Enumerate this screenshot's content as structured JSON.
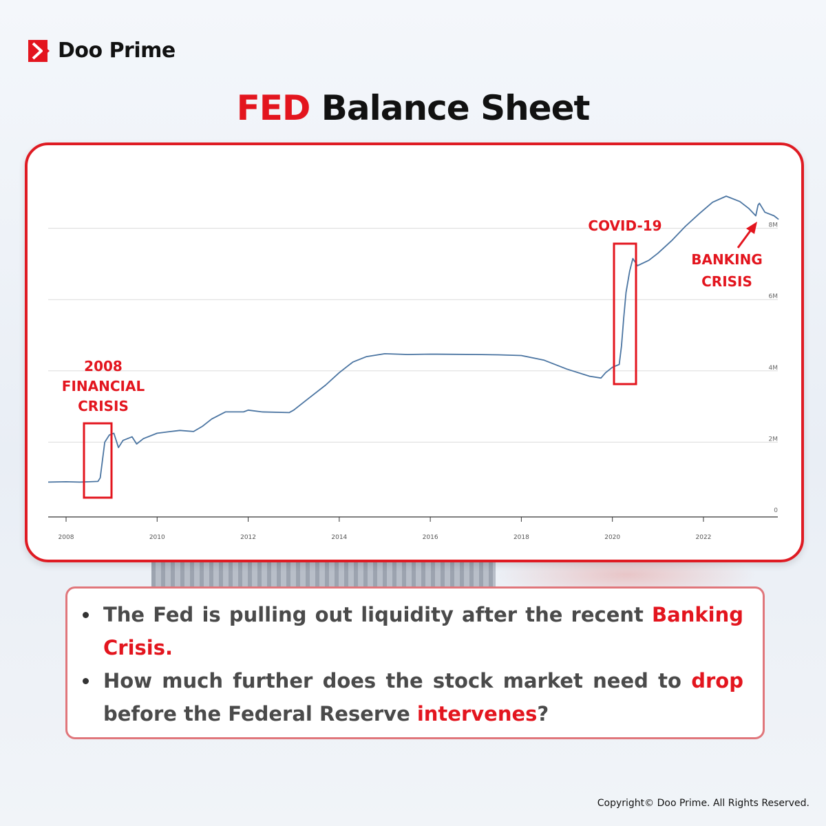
{
  "brand": {
    "name": "Doo Prime",
    "color": "#e3151e"
  },
  "title": {
    "accent": "FED",
    "rest": " Balance Sheet"
  },
  "chart_data": {
    "type": "line",
    "title": "",
    "xlabel": "",
    "ylabel": "",
    "xlim": [
      2007.6,
      2023.7
    ],
    "ylim": [
      0,
      9.5
    ],
    "x_ticks": [
      "2008",
      "2010",
      "2012",
      "2014",
      "2016",
      "2018",
      "2020",
      "2022"
    ],
    "y_ticks": [
      "0",
      "2M",
      "4M",
      "6M",
      "8M"
    ],
    "grid": true,
    "line_color": "#4a74a1",
    "series": [
      {
        "points": [
          [
            2007.6,
            0.88
          ],
          [
            2008.0,
            0.89
          ],
          [
            2008.3,
            0.88
          ],
          [
            2008.7,
            0.9
          ],
          [
            2008.75,
            1.0
          ],
          [
            2008.8,
            1.5
          ],
          [
            2008.85,
            2.0
          ],
          [
            2008.95,
            2.2
          ],
          [
            2009.05,
            2.25
          ],
          [
            2009.15,
            1.85
          ],
          [
            2009.25,
            2.05
          ],
          [
            2009.35,
            2.1
          ],
          [
            2009.45,
            2.15
          ],
          [
            2009.55,
            1.95
          ],
          [
            2009.7,
            2.1
          ],
          [
            2010.0,
            2.25
          ],
          [
            2010.3,
            2.3
          ],
          [
            2010.5,
            2.33
          ],
          [
            2010.8,
            2.3
          ],
          [
            2011.0,
            2.45
          ],
          [
            2011.2,
            2.65
          ],
          [
            2011.5,
            2.85
          ],
          [
            2011.9,
            2.85
          ],
          [
            2012.0,
            2.9
          ],
          [
            2012.3,
            2.85
          ],
          [
            2012.9,
            2.83
          ],
          [
            2013.0,
            2.9
          ],
          [
            2013.3,
            3.2
          ],
          [
            2013.7,
            3.6
          ],
          [
            2014.0,
            3.95
          ],
          [
            2014.3,
            4.25
          ],
          [
            2014.6,
            4.4
          ],
          [
            2015.0,
            4.48
          ],
          [
            2015.5,
            4.46
          ],
          [
            2016.0,
            4.47
          ],
          [
            2017.0,
            4.46
          ],
          [
            2017.5,
            4.45
          ],
          [
            2018.0,
            4.43
          ],
          [
            2018.5,
            4.3
          ],
          [
            2019.0,
            4.05
          ],
          [
            2019.5,
            3.85
          ],
          [
            2019.75,
            3.8
          ],
          [
            2019.85,
            3.95
          ],
          [
            2020.0,
            4.1
          ],
          [
            2020.15,
            4.18
          ],
          [
            2020.2,
            4.7
          ],
          [
            2020.25,
            5.5
          ],
          [
            2020.3,
            6.2
          ],
          [
            2020.38,
            6.8
          ],
          [
            2020.45,
            7.15
          ],
          [
            2020.55,
            6.95
          ],
          [
            2020.8,
            7.1
          ],
          [
            2021.0,
            7.3
          ],
          [
            2021.3,
            7.65
          ],
          [
            2021.6,
            8.05
          ],
          [
            2021.9,
            8.4
          ],
          [
            2022.2,
            8.73
          ],
          [
            2022.5,
            8.9
          ],
          [
            2022.8,
            8.75
          ],
          [
            2023.0,
            8.55
          ],
          [
            2023.15,
            8.35
          ],
          [
            2023.2,
            8.65
          ],
          [
            2023.23,
            8.7
          ],
          [
            2023.35,
            8.45
          ],
          [
            2023.55,
            8.35
          ],
          [
            2023.65,
            8.25
          ]
        ]
      }
    ],
    "annotations": [
      {
        "text": [
          "2008",
          "FINANCIAL",
          "CRISIS"
        ]
      },
      {
        "text": [
          "COVID-19"
        ]
      },
      {
        "text": [
          "BANKING",
          "CRISIS"
        ]
      }
    ],
    "annotation_color": "#e3151e"
  },
  "info": {
    "bullet1": {
      "text": "The Fed is pulling out liquidity after the recent ",
      "highlight": "Banking Crisis."
    },
    "bullet2": {
      "text1": "How much further does the stock market need to ",
      "highlight1": "drop",
      "text2": " before the Federal Reserve ",
      "highlight2": "intervenes",
      "text3": "?"
    }
  },
  "footer": {
    "copyright": "Copyright© Doo Prime. All Rights Reserved."
  }
}
